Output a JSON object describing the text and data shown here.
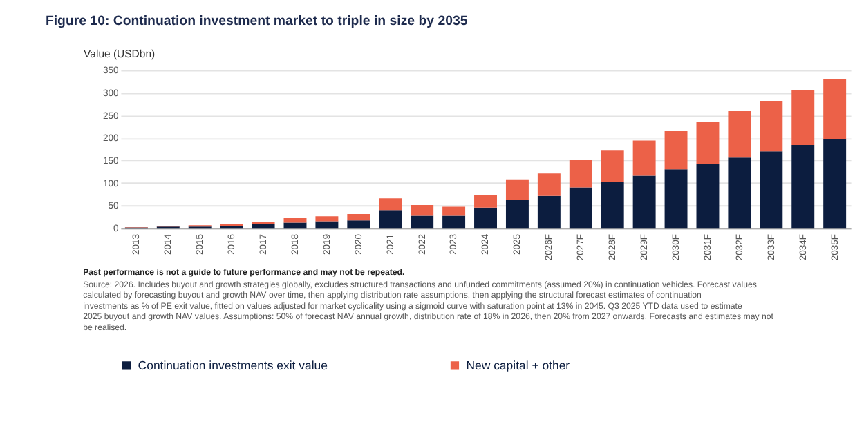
{
  "chart_data": {
    "type": "bar",
    "stacked": true,
    "title": "Figure 10: Continuation investment market to triple in size by 2035",
    "ylabel": "Value (USDbn)",
    "categories": [
      "2013",
      "2014",
      "2015",
      "2016",
      "2017",
      "2018",
      "2019",
      "2020",
      "2021",
      "2022",
      "2023",
      "2024",
      "2025",
      "2026F",
      "2027F",
      "2028F",
      "2029F",
      "2030F",
      "2031F",
      "2032F",
      "2033F",
      "2034F",
      "2035F"
    ],
    "series": [
      {
        "name": "Continuation investments exit value",
        "color": "#0c1d3f",
        "values": [
          1,
          3,
          3,
          5,
          8,
          12,
          15,
          17,
          40,
          27,
          27,
          45,
          63,
          71,
          90,
          103,
          116,
          130,
          142,
          156,
          170,
          184,
          198
        ]
      },
      {
        "name": "New capital + other",
        "color": "#ec6148",
        "values": [
          1,
          2,
          3,
          3,
          6,
          10,
          11,
          14,
          26,
          24,
          20,
          28,
          45,
          50,
          61,
          70,
          78,
          86,
          94,
          103,
          112,
          121,
          132
        ]
      }
    ],
    "ylim": [
      0,
      350
    ],
    "yticks": [
      0,
      50,
      100,
      150,
      200,
      250,
      300,
      350
    ],
    "grid": "y",
    "legend": "bottom",
    "annotations": [
      "Past performance is not a guide to future performance and may not be repeated.",
      "Source: 2026. Includes buyout and growth strategies globally, excludes structured transactions and unfunded commitments (assumed 20%) in continuation vehicles. Forecast values calculated by forecasting buyout and growth NAV over time, then applying distribution rate assumptions, then applying the structural forecast estimates of continuation investments as % of PE exit value, fitted on values adjusted for market cyclicality using a sigmoid curve with saturation point at 13% in 2045. Q3 2025 YTD data used to estimate 2025 buyout and growth NAV values. Assumptions: 50% of forecast NAV annual growth, distribution rate of 18% in 2026, then 20% from 2027 onwards. Forecasts and estimates may not be realised."
    ]
  }
}
